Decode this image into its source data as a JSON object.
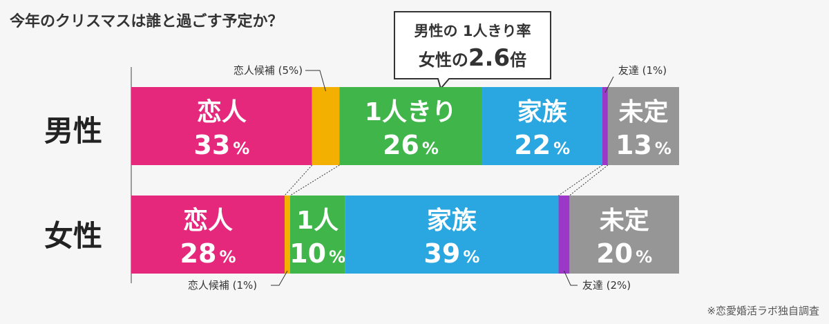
{
  "chart_data": {
    "type": "bar",
    "orientation": "horizontal-stacked-100",
    "title": "今年のクリスマスは誰と過ごす予定か？",
    "source": "※恋愛婚活ラボ独自調査",
    "pct_suffix": "%",
    "callout": {
      "line1": "男性の 1人きり率",
      "line2_prefix": "女性の",
      "line2_value": "2.6",
      "line2_suffix": "倍"
    },
    "rows": [
      {
        "label": "男性",
        "segments": [
          {
            "name": "恋人",
            "value": 33,
            "color": "#e5287c",
            "display_name": "恋人",
            "display_pct": "33"
          },
          {
            "name": "恋人候補",
            "value": 5,
            "color": "#f3b000",
            "external_label": "恋人候補 (5%)"
          },
          {
            "name": "1人きり",
            "value": 26,
            "color": "#3fb54a",
            "display_name": "1人きり",
            "display_pct": "26"
          },
          {
            "name": "家族",
            "value": 22,
            "color": "#2aa7e1",
            "display_name": "家族",
            "display_pct": "22"
          },
          {
            "name": "友達",
            "value": 1,
            "color": "#9b38c7",
            "external_label": "友達 (1%)"
          },
          {
            "name": "未定",
            "value": 13,
            "color": "#969696",
            "display_name": "未定",
            "display_pct": "13"
          }
        ]
      },
      {
        "label": "女性",
        "segments": [
          {
            "name": "恋人",
            "value": 28,
            "color": "#e5287c",
            "display_name": "恋人",
            "display_pct": "28"
          },
          {
            "name": "恋人候補",
            "value": 1,
            "color": "#f3b000",
            "external_label": "恋人候補 (1%)"
          },
          {
            "name": "1人きり",
            "value": 10,
            "color": "#3fb54a",
            "display_name": "1人",
            "display_pct": "10"
          },
          {
            "name": "家族",
            "value": 39,
            "color": "#2aa7e1",
            "display_name": "家族",
            "display_pct": "39"
          },
          {
            "name": "友達",
            "value": 2,
            "color": "#9b38c7",
            "external_label": "友達 (2%)"
          },
          {
            "name": "未定",
            "value": 20,
            "color": "#969696",
            "display_name": "未定",
            "display_pct": "20"
          }
        ]
      }
    ]
  }
}
